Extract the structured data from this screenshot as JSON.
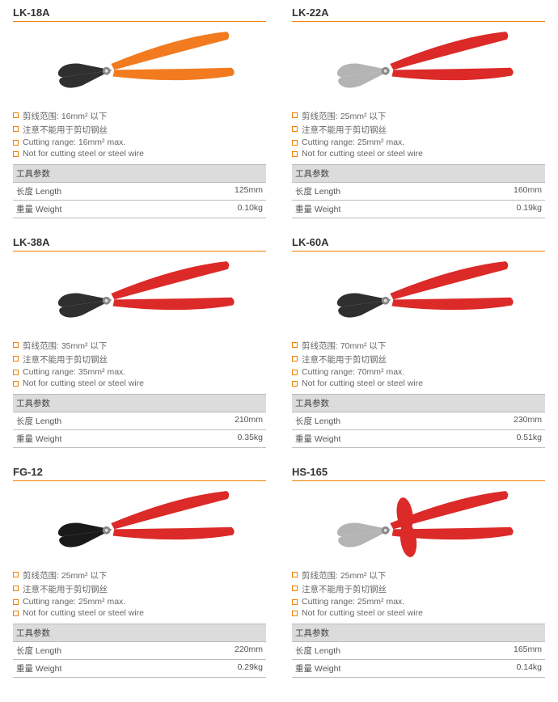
{
  "labels": {
    "param_header": "工具参数",
    "length": "长度 Length",
    "weight": "重量 Weight"
  },
  "colors": {
    "accent": "#f08000",
    "header_bg": "#dcdcdc",
    "border": "#bbbbbb",
    "text": "#5a5a5a",
    "handle_orange": "#f27b1f",
    "handle_red": "#db2a28",
    "jaw_dark": "#2f2f2f",
    "jaw_grey": "#b4b4b4"
  },
  "products": [
    {
      "model": "LK-18A",
      "tool_style": "orange",
      "bullets": [
        "剪线范围: 16mm² 以下",
        "注意不能用于剪切钢丝",
        "Cutting range: 16mm² max.",
        "Not for cutting steel or steel wire"
      ],
      "length": "125mm",
      "weight": "0.10kg"
    },
    {
      "model": "LK-22A",
      "tool_style": "red-grey",
      "bullets": [
        "剪线范围: 25mm² 以下",
        "注意不能用于剪切钢丝",
        "Cutting range: 25mm² max.",
        "Not for cutting steel or steel wire"
      ],
      "length": "160mm",
      "weight": "0.19kg"
    },
    {
      "model": "LK-38A",
      "tool_style": "red-dark",
      "bullets": [
        "剪线范围: 35mm² 以下",
        "注意不能用于剪切钢丝",
        "Cutting range: 35mm² max.",
        "Not for cutting steel or steel wire"
      ],
      "length": "210mm",
      "weight": "0.35kg"
    },
    {
      "model": "LK-60A",
      "tool_style": "red-dark",
      "bullets": [
        "剪线范围: 70mm² 以下",
        "注意不能用于剪切钢丝",
        "Cutting range: 70mm² max.",
        "Not for cutting steel or steel wire"
      ],
      "length": "230mm",
      "weight": "0.51kg"
    },
    {
      "model": "FG-12",
      "tool_style": "red-black",
      "bullets": [
        "剪线范围: 25mm² 以下",
        "注意不能用于剪切钢丝",
        "Cutting range: 25mm² max.",
        "Not for cutting steel or steel wire"
      ],
      "length": "220mm",
      "weight": "0.29kg"
    },
    {
      "model": "HS-165",
      "tool_style": "red-insulated",
      "bullets": [
        "剪线范围: 25mm² 以下",
        "注意不能用于剪切钢丝",
        "Cutting range: 25mm² max.",
        "Not for cutting steel or steel wire"
      ],
      "length": "165mm",
      "weight": "0.14kg"
    }
  ]
}
